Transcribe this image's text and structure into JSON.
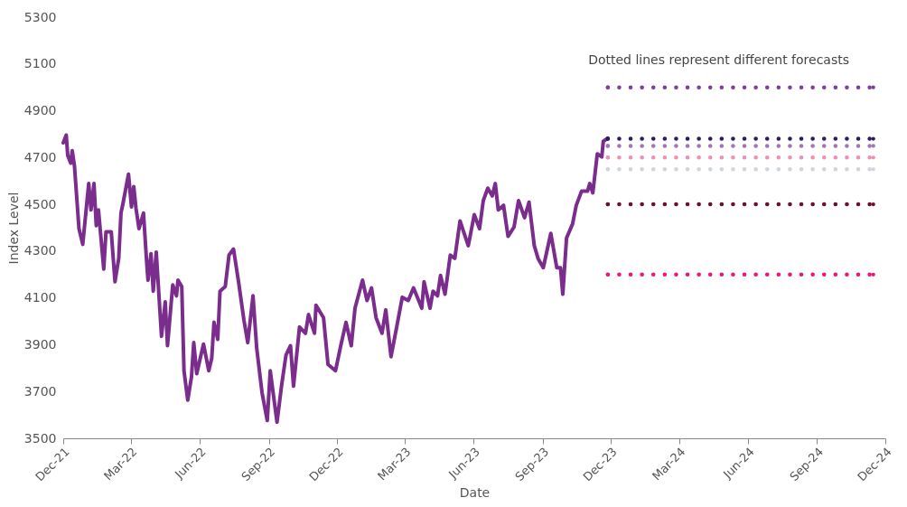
{
  "chart_data": {
    "type": "line",
    "xlabel": "Date",
    "ylabel": "Index Level",
    "annotations": [
      "Dotted lines represent different forecasts"
    ],
    "xlim": [
      "2021-12-01",
      "2024-12-01"
    ],
    "xticks": [
      {
        "value": "2021-12-01",
        "label": "Dec-21"
      },
      {
        "value": "2022-03-01",
        "label": "Mar-22"
      },
      {
        "value": "2022-06-01",
        "label": "Jun-22"
      },
      {
        "value": "2022-09-01",
        "label": "Sep-22"
      },
      {
        "value": "2022-12-01",
        "label": "Dec-22"
      },
      {
        "value": "2023-03-01",
        "label": "Mar-23"
      },
      {
        "value": "2023-06-01",
        "label": "Jun-23"
      },
      {
        "value": "2023-09-01",
        "label": "Sep-23"
      },
      {
        "value": "2023-12-01",
        "label": "Dec-23"
      },
      {
        "value": "2024-03-01",
        "label": "Mar-24"
      },
      {
        "value": "2024-06-01",
        "label": "Jun-24"
      },
      {
        "value": "2024-09-01",
        "label": "Sep-24"
      },
      {
        "value": "2024-12-01",
        "label": "Dec-24"
      }
    ],
    "ylim": [
      3500,
      5300
    ],
    "yticks": [
      3500,
      3700,
      3900,
      4100,
      4300,
      4500,
      4700,
      4900,
      5100,
      5300
    ],
    "grid": false,
    "series": [
      {
        "color": "#7b2d8e",
        "line_style": "solid",
        "x": [
          "2021-12-01",
          "2021-12-05",
          "2021-12-07",
          "2021-12-11",
          "2021-12-13",
          "2021-12-16",
          "2021-12-22",
          "2021-12-27",
          "2022-01-04",
          "2022-01-07",
          "2022-01-11",
          "2022-01-14",
          "2022-01-17",
          "2022-01-24",
          "2022-01-27",
          "2022-02-03",
          "2022-02-08",
          "2022-02-13",
          "2022-02-16",
          "2022-02-19",
          "2022-02-26",
          "2022-03-02",
          "2022-03-05",
          "2022-03-08",
          "2022-03-12",
          "2022-03-18",
          "2022-03-22",
          "2022-03-24",
          "2022-03-28",
          "2022-03-31",
          "2022-04-04",
          "2022-04-11",
          "2022-04-16",
          "2022-04-19",
          "2022-04-26",
          "2022-05-01",
          "2022-05-03",
          "2022-05-08",
          "2022-05-11",
          "2022-05-16",
          "2022-05-21",
          "2022-05-24",
          "2022-05-28",
          "2022-06-06",
          "2022-06-13",
          "2022-06-17",
          "2022-06-20",
          "2022-06-25",
          "2022-06-28",
          "2022-07-05",
          "2022-07-10",
          "2022-07-16",
          "2022-07-23",
          "2022-07-30",
          "2022-08-04",
          "2022-08-11",
          "2022-08-16",
          "2022-08-23",
          "2022-08-30",
          "2022-09-03",
          "2022-09-12",
          "2022-09-18",
          "2022-09-24",
          "2022-09-30",
          "2022-10-04",
          "2022-10-12",
          "2022-10-20",
          "2022-10-24",
          "2022-11-01",
          "2022-11-03",
          "2022-11-13",
          "2022-11-19",
          "2022-11-29",
          "2022-12-06",
          "2022-12-13",
          "2022-12-20",
          "2022-12-25",
          "2023-01-04",
          "2023-01-10",
          "2023-01-16",
          "2023-01-22",
          "2023-01-30",
          "2023-02-04",
          "2023-02-11",
          "2023-02-19",
          "2023-02-26",
          "2023-03-06",
          "2023-03-13",
          "2023-03-24",
          "2023-03-27",
          "2023-04-04",
          "2023-04-08",
          "2023-04-14",
          "2023-04-18",
          "2023-04-24",
          "2023-05-01",
          "2023-05-07",
          "2023-05-14",
          "2023-05-25",
          "2023-06-02",
          "2023-06-09",
          "2023-06-14",
          "2023-06-20",
          "2023-06-26",
          "2023-06-30",
          "2023-07-04",
          "2023-07-11",
          "2023-07-17",
          "2023-07-25",
          "2023-07-31",
          "2023-08-08",
          "2023-08-14",
          "2023-08-21",
          "2023-08-26",
          "2023-09-02",
          "2023-09-12",
          "2023-09-20",
          "2023-09-25",
          "2023-09-28",
          "2023-10-03",
          "2023-10-11",
          "2023-10-16",
          "2023-10-23",
          "2023-10-31",
          "2023-11-03",
          "2023-11-07",
          "2023-11-13",
          "2023-11-19",
          "2023-11-21",
          "2023-11-27"
        ],
        "values": [
          4763,
          4796,
          4709,
          4676,
          4729,
          4663,
          4396,
          4329,
          4589,
          4476,
          4589,
          4409,
          4476,
          4223,
          4383,
          4383,
          4169,
          4269,
          4463,
          4509,
          4629,
          4489,
          4576,
          4483,
          4396,
          4463,
          4263,
          4176,
          4289,
          4129,
          4296,
          3936,
          4083,
          3896,
          4156,
          4109,
          4176,
          4149,
          3789,
          3663,
          3763,
          3909,
          3776,
          3903,
          3789,
          3843,
          3996,
          3923,
          4129,
          4149,
          4283,
          4309,
          4163,
          4003,
          3909,
          4109,
          3883,
          3696,
          3576,
          3789,
          3569,
          3723,
          3856,
          3896,
          3723,
          3976,
          3949,
          4029,
          3949,
          4069,
          4016,
          3816,
          3789,
          3896,
          3996,
          3896,
          4056,
          4176,
          4089,
          4143,
          4016,
          3949,
          4049,
          3849,
          3983,
          4103,
          4089,
          4143,
          4056,
          4169,
          4056,
          4129,
          4109,
          4196,
          4116,
          4283,
          4269,
          4429,
          4323,
          4456,
          4396,
          4516,
          4569,
          4536,
          4589,
          4476,
          4496,
          4363,
          4403,
          4516,
          4443,
          4509,
          4323,
          4269,
          4229,
          4376,
          4229,
          4229,
          4116,
          4356,
          4416,
          4496,
          4556,
          4556,
          4589,
          4549,
          4716,
          4703,
          4769,
          4783
        ]
      },
      {
        "color": "#7f3f98",
        "line_style": "dotted",
        "x": [
          "2023-11-27",
          "2024-11-15"
        ],
        "values": [
          5000,
          5000
        ]
      },
      {
        "color": "#2e1a5e",
        "line_style": "dotted",
        "x": [
          "2023-11-27",
          "2024-11-15"
        ],
        "values": [
          4780,
          4780
        ]
      },
      {
        "color": "#a474b8",
        "line_style": "dotted",
        "x": [
          "2023-11-27",
          "2024-11-15"
        ],
        "values": [
          4750,
          4750
        ]
      },
      {
        "color": "#f08fb0",
        "line_style": "dotted",
        "x": [
          "2023-11-27",
          "2024-11-15"
        ],
        "values": [
          4700,
          4700
        ]
      },
      {
        "color": "#d3d3de",
        "line_style": "dotted",
        "x": [
          "2023-11-27",
          "2024-11-15"
        ],
        "values": [
          4650,
          4650
        ]
      },
      {
        "color": "#6b0f33",
        "line_style": "dotted",
        "x": [
          "2023-11-27",
          "2024-11-15"
        ],
        "values": [
          4500,
          4500
        ]
      },
      {
        "color": "#e6197a",
        "line_style": "dotted",
        "x": [
          "2023-11-27",
          "2024-11-15"
        ],
        "values": [
          4200,
          4200
        ]
      }
    ]
  }
}
